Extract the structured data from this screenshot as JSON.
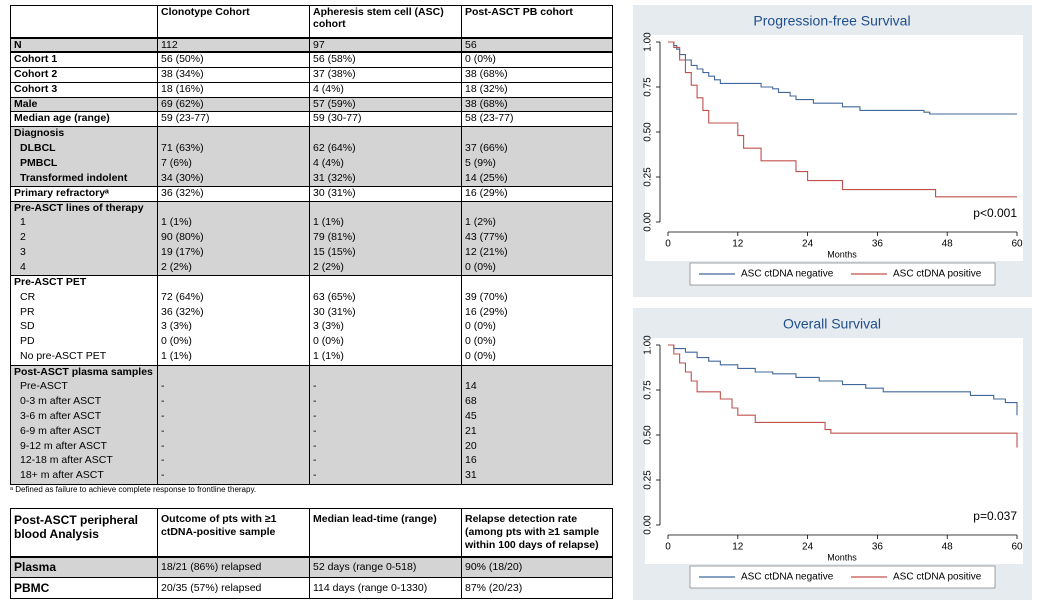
{
  "table": {
    "header": [
      "",
      "Clonotype Cohort",
      "Apheresis stem cell (ASC) cohort",
      "Post-ASCT PB cohort"
    ],
    "rows": [
      [
        "N",
        "112",
        "97",
        "56"
      ],
      [
        "Cohort 1",
        "56 (50%)",
        "56 (58%)",
        "0 (0%)"
      ],
      [
        "Cohort 2",
        "38 (34%)",
        "37 (38%)",
        "38 (68%)"
      ],
      [
        "Cohort 3",
        "18 (16%)",
        "4 (4%)",
        "18 (32%)"
      ],
      [
        "Male",
        "69 (62%)",
        "57 (59%)",
        "38 (68%)"
      ],
      [
        "Median age (range)",
        "59 (23-77)",
        "59 (30-77)",
        "58 (23-77)"
      ],
      [
        "Diagnosis",
        "",
        "",
        ""
      ],
      [
        "DLBCL",
        "71 (63%)",
        "62 (64%)",
        "37 (66%)"
      ],
      [
        "PMBCL",
        "7 (6%)",
        "4 (4%)",
        "5 (9%)"
      ],
      [
        "Transformed indolent",
        "34 (30%)",
        "31 (32%)",
        "14 (25%)"
      ],
      [
        "Primary refractoryᵃ",
        "36 (32%)",
        "30 (31%)",
        "16 (29%)"
      ],
      [
        "Pre-ASCT lines of therapy",
        "",
        "",
        ""
      ],
      [
        "1",
        "1 (1%)",
        "1 (1%)",
        "1 (2%)"
      ],
      [
        "2",
        "90 (80%)",
        "79 (81%)",
        "43 (77%)"
      ],
      [
        "3",
        "19 (17%)",
        "15 (15%)",
        "12 (21%)"
      ],
      [
        "4",
        "2 (2%)",
        "2 (2%)",
        "0 (0%)"
      ],
      [
        "Pre-ASCT PET",
        "",
        "",
        ""
      ],
      [
        "CR",
        "72 (64%)",
        "63 (65%)",
        "39 (70%)"
      ],
      [
        "PR",
        "36 (32%)",
        "30 (31%)",
        "16 (29%)"
      ],
      [
        "SD",
        "3 (3%)",
        "3 (3%)",
        "0 (0%)"
      ],
      [
        "PD",
        "0 (0%)",
        "0 (0%)",
        "0 (0%)"
      ],
      [
        "No pre-ASCT PET",
        "1 (1%)",
        "1 (1%)",
        "0 (0%)"
      ],
      [
        "Post-ASCT plasma samples",
        "",
        "",
        ""
      ],
      [
        "Pre-ASCT",
        "-",
        "-",
        "14"
      ],
      [
        "0-3 m after ASCT",
        "-",
        "-",
        "68"
      ],
      [
        "3-6 m after ASCT",
        "-",
        "-",
        "45"
      ],
      [
        "6-9 m after ASCT",
        "-",
        "-",
        "21"
      ],
      [
        "9-12 m after ASCT",
        "-",
        "-",
        "20"
      ],
      [
        "12-18 m after ASCT",
        "-",
        "-",
        "16"
      ],
      [
        "18+ m after ASCT",
        "-",
        "-",
        "31"
      ]
    ],
    "footnote": "ᵃ Defined as failure to achieve complete response to frontline therapy."
  },
  "table2": {
    "header": [
      "Post-ASCT peripheral blood Analysis",
      "Outcome of pts with ≥1 ctDNA-positive sample",
      "Median lead-time (range)",
      "Relapse detection rate (among pts with ≥1 sample within 100 days of relapse)"
    ],
    "rows": [
      [
        "Plasma",
        "18/21 (86%) relapsed",
        "52 days (range 0-518)",
        "90% (18/20)"
      ],
      [
        "PBMC",
        "20/35 (57%) relapsed",
        "114 days (range 0-1330)",
        "87% (20/23)"
      ]
    ]
  },
  "chart_data": [
    {
      "type": "line",
      "step": true,
      "title": "Progression-free Survival",
      "x_label": "Months",
      "annotation": "p<0.001",
      "xlim": [
        0,
        60
      ],
      "xticks": [
        0,
        12,
        24,
        36,
        48,
        60
      ],
      "ylim": [
        0,
        1
      ],
      "yticks": [
        {
          "value": 0,
          "label": "0.00"
        },
        {
          "value": 0.25,
          "label": "0.25"
        },
        {
          "value": 0.5,
          "label": "0.50"
        },
        {
          "value": 0.75,
          "label": "0.75"
        },
        {
          "value": 1,
          "label": "1.00"
        }
      ],
      "series": [
        {
          "name": "ASC ctDNA negative",
          "color": "#41689a",
          "x": [
            0,
            1,
            1.5,
            2,
            3,
            4,
            5,
            6,
            7,
            8,
            9,
            16,
            18,
            19,
            21,
            22,
            25,
            30,
            33,
            44,
            45,
            60
          ],
          "values": [
            1,
            0.98,
            0.96,
            0.93,
            0.9,
            0.87,
            0.85,
            0.83,
            0.81,
            0.79,
            0.77,
            0.75,
            0.74,
            0.72,
            0.7,
            0.68,
            0.66,
            0.64,
            0.62,
            0.61,
            0.6,
            0.6
          ]
        },
        {
          "name": "ASC ctDNA positive",
          "color": "#c0504d",
          "x": [
            0,
            1,
            2,
            3,
            4,
            5,
            6,
            7,
            12,
            13,
            16,
            22,
            24,
            30,
            46,
            60
          ],
          "values": [
            1,
            0.97,
            0.9,
            0.83,
            0.76,
            0.69,
            0.62,
            0.55,
            0.48,
            0.41,
            0.34,
            0.28,
            0.23,
            0.18,
            0.14,
            0.14
          ]
        }
      ]
    },
    {
      "type": "line",
      "step": true,
      "title": "Overall Survival",
      "x_label": "Months",
      "annotation": "p=0.037",
      "xlim": [
        0,
        60
      ],
      "xticks": [
        0,
        12,
        24,
        36,
        48,
        60
      ],
      "ylim": [
        0,
        1
      ],
      "yticks": [
        {
          "value": 0,
          "label": "0.00"
        },
        {
          "value": 0.25,
          "label": "0.25"
        },
        {
          "value": 0.5,
          "label": "0.50"
        },
        {
          "value": 0.75,
          "label": "0.75"
        },
        {
          "value": 1,
          "label": "1.00"
        }
      ],
      "series": [
        {
          "name": "ASC ctDNA negative",
          "color": "#41689a",
          "x": [
            0,
            1,
            3,
            5,
            7,
            9,
            12,
            15,
            18,
            22,
            26,
            30,
            34,
            37,
            52,
            56,
            58,
            60
          ],
          "values": [
            1,
            0.98,
            0.96,
            0.93,
            0.91,
            0.89,
            0.87,
            0.85,
            0.84,
            0.82,
            0.8,
            0.78,
            0.76,
            0.74,
            0.72,
            0.7,
            0.68,
            0.61
          ]
        },
        {
          "name": "ASC ctDNA positive",
          "color": "#c0504d",
          "x": [
            0,
            1,
            2,
            3,
            4,
            5,
            9,
            11,
            12,
            15,
            27,
            28,
            60,
            60
          ],
          "values": [
            1,
            0.95,
            0.9,
            0.85,
            0.8,
            0.74,
            0.7,
            0.65,
            0.61,
            0.57,
            0.53,
            0.51,
            0.51,
            0.43
          ]
        }
      ]
    }
  ]
}
